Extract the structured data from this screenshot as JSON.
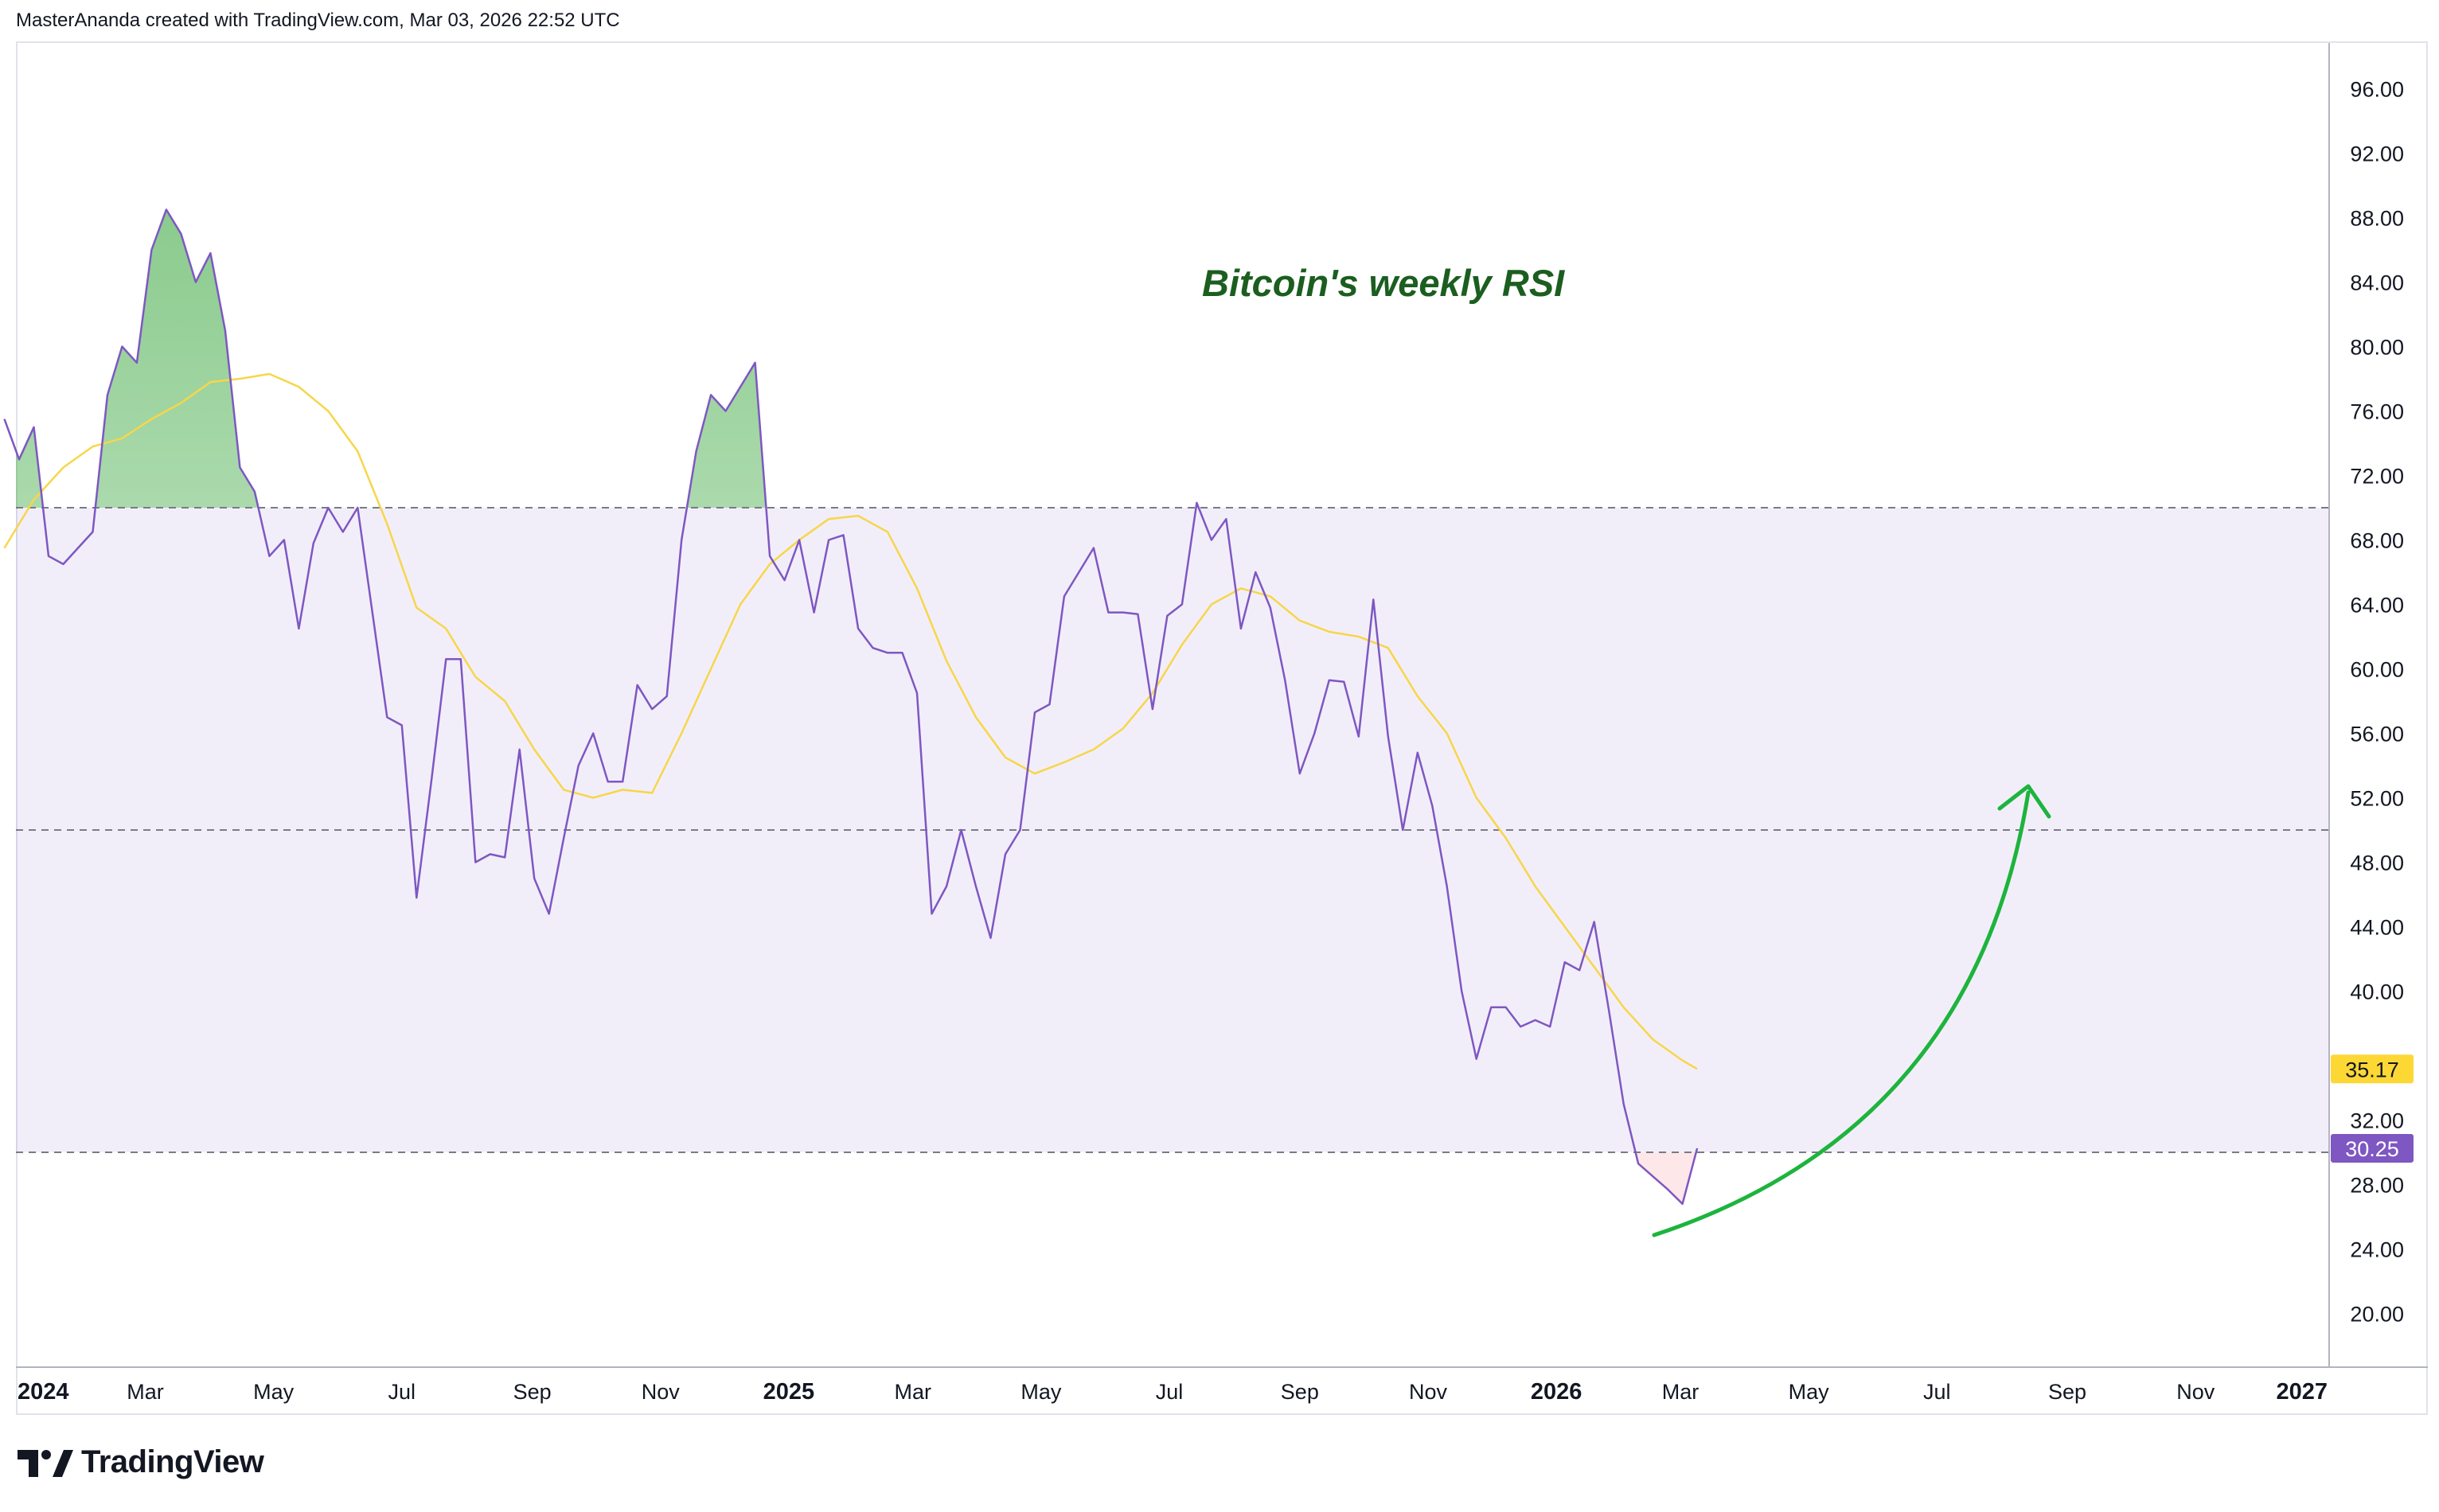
{
  "header": {
    "text": "MasterAnanda created with TradingView.com, Mar 03, 2026 22:52 UTC"
  },
  "footer": {
    "brand": "TradingView"
  },
  "colors": {
    "rsi_line": "#7e57c2",
    "ma_line": "#f7d64a",
    "band_fill": "#7e57c2",
    "overbought_fill": "#4caf50",
    "oversold_fill": "#f23645",
    "arrow": "#1db43d",
    "annotation": "#1b5e20",
    "rsi_badge": "#7e57c2",
    "ma_badge": "#fdd835",
    "grid_line": "#787b86"
  },
  "chart_data": {
    "type": "line",
    "title": "Bitcoin's weekly RSI",
    "xlabel": "",
    "ylabel": "",
    "ylim": [
      16.5,
      99
    ],
    "y_ticks": [
      "96.00",
      "92.00",
      "88.00",
      "84.00",
      "80.00",
      "76.00",
      "72.00",
      "68.00",
      "64.00",
      "60.00",
      "56.00",
      "52.00",
      "48.00",
      "44.00",
      "40.00",
      "32.00",
      "28.00",
      "24.00",
      "20.00"
    ],
    "x_ticks": [
      {
        "label": "2024",
        "date": "2024-01-01",
        "bold": true
      },
      {
        "label": "Mar",
        "date": "2024-03-01",
        "bold": false
      },
      {
        "label": "May",
        "date": "2024-05-01",
        "bold": false
      },
      {
        "label": "Jul",
        "date": "2024-07-01",
        "bold": false
      },
      {
        "label": "Sep",
        "date": "2024-09-01",
        "bold": false
      },
      {
        "label": "Nov",
        "date": "2024-11-01",
        "bold": false
      },
      {
        "label": "2025",
        "date": "2025-01-01",
        "bold": true
      },
      {
        "label": "Mar",
        "date": "2025-03-01",
        "bold": false
      },
      {
        "label": "May",
        "date": "2025-05-01",
        "bold": false
      },
      {
        "label": "Jul",
        "date": "2025-07-01",
        "bold": false
      },
      {
        "label": "Sep",
        "date": "2025-09-01",
        "bold": false
      },
      {
        "label": "Nov",
        "date": "2025-11-01",
        "bold": false
      },
      {
        "label": "2026",
        "date": "2026-01-01",
        "bold": true
      },
      {
        "label": "Mar",
        "date": "2026-03-01",
        "bold": false
      },
      {
        "label": "May",
        "date": "2026-05-01",
        "bold": false
      },
      {
        "label": "Jul",
        "date": "2026-07-01",
        "bold": false
      },
      {
        "label": "Sep",
        "date": "2026-09-01",
        "bold": false
      },
      {
        "label": "Nov",
        "date": "2026-11-01",
        "bold": false
      },
      {
        "label": "2027",
        "date": "2027-01-01",
        "bold": true
      }
    ],
    "bands": {
      "upper": 70,
      "middle": 50,
      "lower": 30
    },
    "last_values": {
      "rsi": "30.25",
      "ma": "35.17"
    },
    "grid": false,
    "legend": "none",
    "series": [
      {
        "values": [
          [
            "2023-12-25",
            75.5
          ],
          [
            "2024-01-01",
            73
          ],
          [
            "2024-01-08",
            75
          ],
          [
            "2024-01-15",
            67
          ],
          [
            "2024-01-22",
            66.5
          ],
          [
            "2024-01-29",
            67.5
          ],
          [
            "2024-02-05",
            68.5
          ],
          [
            "2024-02-12",
            77
          ],
          [
            "2024-02-19",
            80
          ],
          [
            "2024-02-26",
            79
          ],
          [
            "2024-03-04",
            86
          ],
          [
            "2024-03-11",
            88.5
          ],
          [
            "2024-03-18",
            87
          ],
          [
            "2024-03-25",
            84
          ],
          [
            "2024-04-01",
            85.8
          ],
          [
            "2024-04-08",
            81
          ],
          [
            "2024-04-15",
            72.5
          ],
          [
            "2024-04-22",
            71
          ],
          [
            "2024-04-29",
            67
          ],
          [
            "2024-05-06",
            68
          ],
          [
            "2024-05-13",
            62.5
          ],
          [
            "2024-05-20",
            67.8
          ],
          [
            "2024-05-27",
            70
          ],
          [
            "2024-06-03",
            68.5
          ],
          [
            "2024-06-10",
            70
          ],
          [
            "2024-06-17",
            63.5
          ],
          [
            "2024-06-24",
            57
          ],
          [
            "2024-07-01",
            56.5
          ],
          [
            "2024-07-08",
            45.8
          ],
          [
            "2024-07-15",
            53
          ],
          [
            "2024-07-22",
            60.6
          ],
          [
            "2024-07-29",
            60.6
          ],
          [
            "2024-08-05",
            48
          ],
          [
            "2024-08-12",
            48.5
          ],
          [
            "2024-08-19",
            48.3
          ],
          [
            "2024-08-26",
            55
          ],
          [
            "2024-09-02",
            47
          ],
          [
            "2024-09-09",
            44.8
          ],
          [
            "2024-09-16",
            49.5
          ],
          [
            "2024-09-23",
            54
          ],
          [
            "2024-09-30",
            56
          ],
          [
            "2024-10-07",
            53
          ],
          [
            "2024-10-14",
            53
          ],
          [
            "2024-10-21",
            59
          ],
          [
            "2024-10-28",
            57.5
          ],
          [
            "2024-11-04",
            58.3
          ],
          [
            "2024-11-11",
            68
          ],
          [
            "2024-11-18",
            73.5
          ],
          [
            "2024-11-25",
            77
          ],
          [
            "2024-12-02",
            76
          ],
          [
            "2024-12-09",
            77.5
          ],
          [
            "2024-12-16",
            79
          ],
          [
            "2024-12-23",
            67
          ],
          [
            "2024-12-30",
            65.5
          ],
          [
            "2025-01-06",
            68
          ],
          [
            "2025-01-13",
            63.5
          ],
          [
            "2025-01-20",
            68
          ],
          [
            "2025-01-27",
            68.3
          ],
          [
            "2025-02-03",
            62.5
          ],
          [
            "2025-02-10",
            61.3
          ],
          [
            "2025-02-17",
            61
          ],
          [
            "2025-02-24",
            61
          ],
          [
            "2025-03-03",
            58.5
          ],
          [
            "2025-03-10",
            44.8
          ],
          [
            "2025-03-17",
            46.5
          ],
          [
            "2025-03-24",
            50
          ],
          [
            "2025-03-31",
            46.5
          ],
          [
            "2025-04-07",
            43.3
          ],
          [
            "2025-04-14",
            48.5
          ],
          [
            "2025-04-21",
            50
          ],
          [
            "2025-04-28",
            57.3
          ],
          [
            "2025-05-05",
            57.8
          ],
          [
            "2025-05-12",
            64.5
          ],
          [
            "2025-05-19",
            66
          ],
          [
            "2025-05-26",
            67.5
          ],
          [
            "2025-06-02",
            63.5
          ],
          [
            "2025-06-09",
            63.5
          ],
          [
            "2025-06-16",
            63.4
          ],
          [
            "2025-06-23",
            57.5
          ],
          [
            "2025-06-30",
            63.3
          ],
          [
            "2025-07-07",
            64
          ],
          [
            "2025-07-14",
            70.3
          ],
          [
            "2025-07-21",
            68
          ],
          [
            "2025-07-28",
            69.3
          ],
          [
            "2025-08-04",
            62.5
          ],
          [
            "2025-08-11",
            66
          ],
          [
            "2025-08-18",
            63.8
          ],
          [
            "2025-08-25",
            59.3
          ],
          [
            "2025-09-01",
            53.5
          ],
          [
            "2025-09-08",
            56
          ],
          [
            "2025-09-15",
            59.3
          ],
          [
            "2025-09-22",
            59.2
          ],
          [
            "2025-09-29",
            55.8
          ],
          [
            "2025-10-06",
            64.3
          ],
          [
            "2025-10-13",
            55.8
          ],
          [
            "2025-10-20",
            50
          ],
          [
            "2025-10-27",
            54.8
          ],
          [
            "2025-11-03",
            51.5
          ],
          [
            "2025-11-10",
            46.5
          ],
          [
            "2025-11-17",
            40
          ],
          [
            "2025-11-24",
            35.8
          ],
          [
            "2025-12-01",
            39
          ],
          [
            "2025-12-08",
            39
          ],
          [
            "2025-12-15",
            37.8
          ],
          [
            "2025-12-22",
            38.2
          ],
          [
            "2025-12-29",
            37.8
          ],
          [
            "2026-01-05",
            41.8
          ],
          [
            "2026-01-12",
            41.3
          ],
          [
            "2026-01-19",
            44.3
          ],
          [
            "2026-01-26",
            38.8
          ],
          [
            "2026-02-02",
            33
          ],
          [
            "2026-02-09",
            29.3
          ],
          [
            "2026-02-16",
            28.5
          ],
          [
            "2026-02-23",
            27.7
          ],
          [
            "2026-03-02",
            26.8
          ],
          [
            "2026-03-09",
            30.25
          ]
        ]
      },
      {
        "values": [
          [
            "2023-12-25",
            67.5
          ],
          [
            "2024-01-08",
            70.5
          ],
          [
            "2024-01-22",
            72.5
          ],
          [
            "2024-02-05",
            73.8
          ],
          [
            "2024-02-19",
            74.3
          ],
          [
            "2024-03-04",
            75.5
          ],
          [
            "2024-03-18",
            76.5
          ],
          [
            "2024-04-01",
            77.8
          ],
          [
            "2024-04-15",
            78
          ],
          [
            "2024-04-29",
            78.3
          ],
          [
            "2024-05-13",
            77.5
          ],
          [
            "2024-05-27",
            76
          ],
          [
            "2024-06-10",
            73.5
          ],
          [
            "2024-06-24",
            69
          ],
          [
            "2024-07-08",
            63.8
          ],
          [
            "2024-07-22",
            62.5
          ],
          [
            "2024-08-05",
            59.5
          ],
          [
            "2024-08-19",
            58
          ],
          [
            "2024-09-02",
            55
          ],
          [
            "2024-09-16",
            52.5
          ],
          [
            "2024-09-30",
            52
          ],
          [
            "2024-10-14",
            52.5
          ],
          [
            "2024-10-28",
            52.3
          ],
          [
            "2024-11-11",
            56
          ],
          [
            "2024-11-25",
            60
          ],
          [
            "2024-12-09",
            64
          ],
          [
            "2024-12-23",
            66.5
          ],
          [
            "2025-01-06",
            68
          ],
          [
            "2025-01-20",
            69.3
          ],
          [
            "2025-02-03",
            69.5
          ],
          [
            "2025-02-17",
            68.5
          ],
          [
            "2025-03-03",
            65
          ],
          [
            "2025-03-17",
            60.5
          ],
          [
            "2025-03-31",
            57
          ],
          [
            "2025-04-14",
            54.5
          ],
          [
            "2025-04-28",
            53.5
          ],
          [
            "2025-05-12",
            54.2
          ],
          [
            "2025-05-26",
            55
          ],
          [
            "2025-06-09",
            56.3
          ],
          [
            "2025-06-23",
            58.5
          ],
          [
            "2025-07-07",
            61.5
          ],
          [
            "2025-07-21",
            64
          ],
          [
            "2025-08-04",
            65
          ],
          [
            "2025-08-18",
            64.5
          ],
          [
            "2025-09-01",
            63
          ],
          [
            "2025-09-15",
            62.3
          ],
          [
            "2025-09-29",
            62
          ],
          [
            "2025-10-13",
            61.3
          ],
          [
            "2025-10-27",
            58.3
          ],
          [
            "2025-11-10",
            56
          ],
          [
            "2025-11-24",
            52
          ],
          [
            "2025-12-08",
            49.5
          ],
          [
            "2025-12-22",
            46.5
          ],
          [
            "2026-01-05",
            44
          ],
          [
            "2026-01-19",
            41.5
          ],
          [
            "2026-02-02",
            39
          ],
          [
            "2026-02-16",
            37
          ],
          [
            "2026-03-02",
            35.7
          ],
          [
            "2026-03-09",
            35.17
          ]
        ]
      }
    ]
  }
}
